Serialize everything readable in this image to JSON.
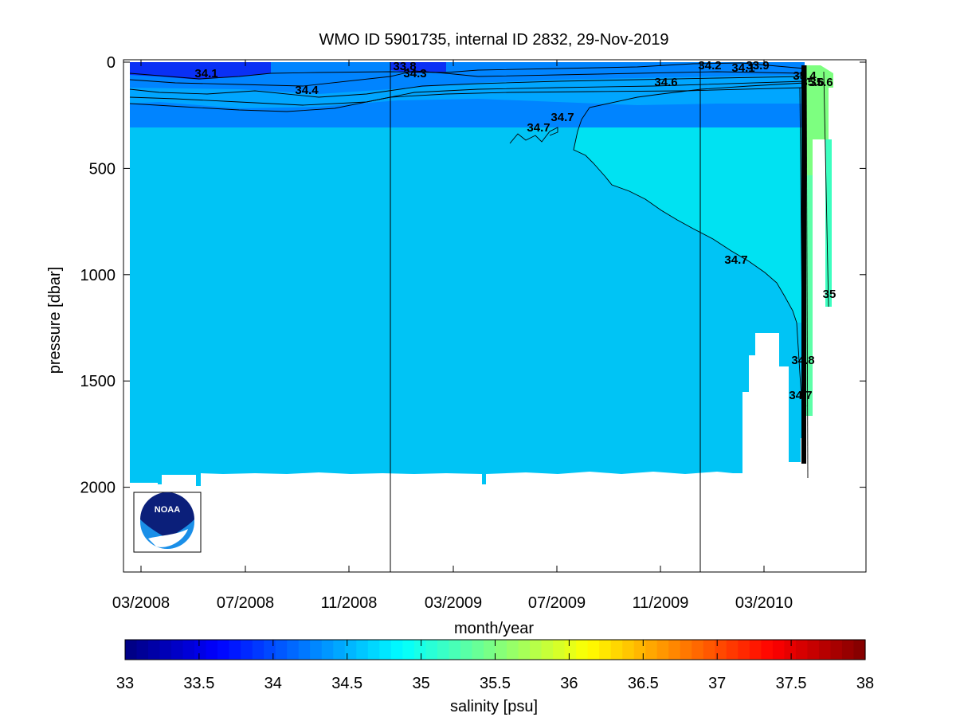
{
  "chart_data": {
    "type": "heatmap",
    "title": "WMO ID 5901735, internal ID 2832, 29-Nov-2019",
    "xlabel": "month/year",
    "ylabel": "pressure [dbar]",
    "x_ticks": [
      "03/2008",
      "07/2008",
      "11/2008",
      "03/2009",
      "07/2009",
      "11/2009",
      "03/2010"
    ],
    "y_ticks": [
      0,
      500,
      1000,
      1500,
      2000
    ],
    "ylim": [
      0,
      2400
    ],
    "y_reversed": true,
    "colorbar": {
      "label": "salinity [psu]",
      "range": [
        33,
        38
      ],
      "ticks": [
        33,
        33.5,
        34,
        34.5,
        35,
        35.5,
        36,
        36.5,
        37,
        37.5,
        38
      ],
      "colormap": "jet"
    },
    "contour_labels": [
      "34.1",
      "33.8",
      "34.3",
      "34.4",
      "34.6",
      "34.2",
      "34.1",
      "33.9",
      "35.4",
      "35.6",
      "35.6",
      "34.7",
      "34.7",
      "34.7",
      "35",
      "34.8",
      "34.7"
    ],
    "approx_fields": {
      "surface_layer_salinity": 34.1,
      "deep_layer_salinity": 34.65,
      "deep_fresher_wedge_salinity": 34.75,
      "profile_max_pressure": 1950
    },
    "colors": {
      "salinity_34_0": "#0a30f5",
      "salinity_34_3": "#0080ff",
      "salinity_34_4": "#0094ff",
      "salinity_34_6": "#00c4f5",
      "salinity_34_8": "#00e2f2",
      "salinity_35_5": "#7dff80"
    },
    "logo": {
      "text": "NOAA"
    }
  }
}
